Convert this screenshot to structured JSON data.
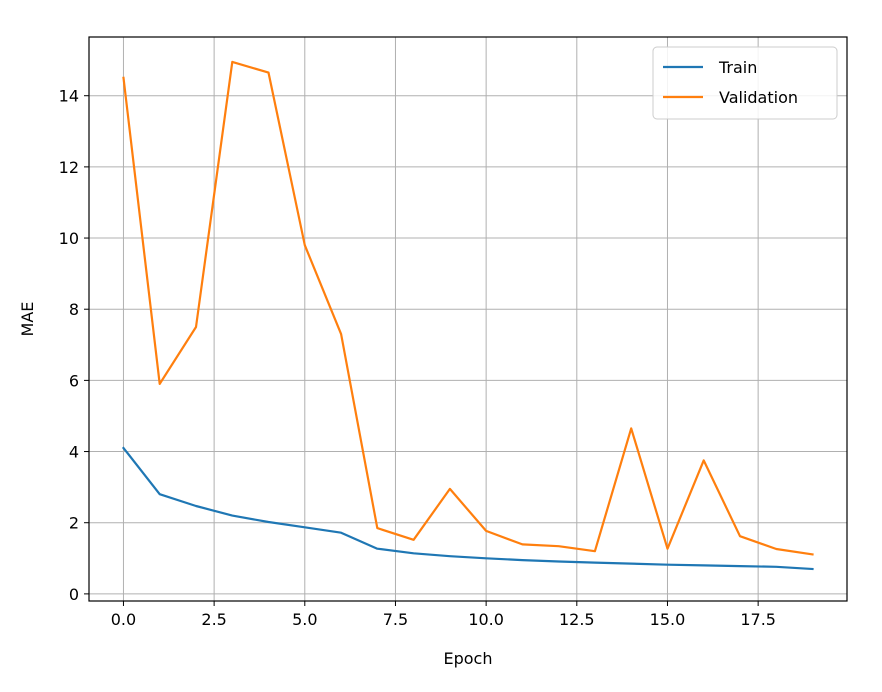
{
  "chart_data": {
    "type": "line",
    "title": "",
    "xlabel": "Epoch",
    "ylabel": "MAE",
    "xlim": [
      -0.95,
      19.95
    ],
    "ylim": [
      -0.2,
      15.65
    ],
    "grid": true,
    "legend_position": "top-right",
    "x_ticks": [
      0.0,
      2.5,
      5.0,
      7.5,
      10.0,
      12.5,
      15.0,
      17.5
    ],
    "x_tick_labels": [
      "0.0",
      "2.5",
      "5.0",
      "7.5",
      "10.0",
      "12.5",
      "15.0",
      "17.5"
    ],
    "y_ticks": [
      0,
      2,
      4,
      6,
      8,
      10,
      12,
      14
    ],
    "y_tick_labels": [
      "0",
      "2",
      "4",
      "6",
      "8",
      "10",
      "12",
      "14"
    ],
    "x": [
      0,
      1,
      2,
      3,
      4,
      5,
      6,
      7,
      8,
      9,
      10,
      11,
      12,
      13,
      14,
      15,
      16,
      17,
      18,
      19
    ],
    "series": [
      {
        "name": "Train",
        "color": "#1f77b4",
        "values": [
          4.1,
          2.8,
          2.47,
          2.2,
          2.02,
          1.87,
          1.72,
          1.27,
          1.14,
          1.06,
          1.0,
          0.95,
          0.91,
          0.88,
          0.85,
          0.82,
          0.8,
          0.78,
          0.76,
          0.7
        ]
      },
      {
        "name": "Validation",
        "color": "#ff7f0e",
        "values": [
          14.5,
          5.9,
          7.5,
          14.95,
          14.65,
          9.8,
          7.3,
          1.85,
          1.52,
          2.95,
          1.77,
          1.39,
          1.34,
          1.2,
          4.65,
          1.27,
          3.75,
          1.62,
          1.26,
          1.11
        ]
      }
    ]
  }
}
